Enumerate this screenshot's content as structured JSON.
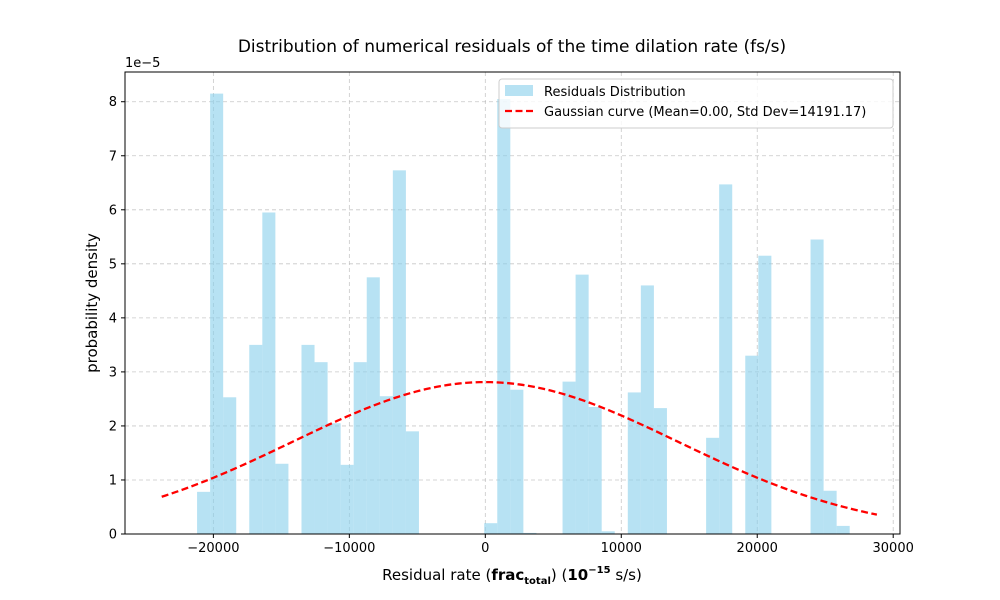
{
  "chart_data": {
    "type": "bar",
    "title": "Distribution of numerical residuals of the time dilation rate (fs/s)",
    "xlabel": {
      "prefix": "Residual rate (",
      "frac_base": "frac",
      "frac_sub": "total",
      "middle": ") (",
      "pow_base": "10",
      "pow_exp": "−15",
      "suffix": " s/s)"
    },
    "ylabel": "probability density",
    "y_offset_label": "1e−5",
    "y_scale": 1e-05,
    "xlim": [
      -26500,
      30500
    ],
    "ylim": [
      0,
      8.55
    ],
    "x_ticks": [
      -20000,
      -10000,
      0,
      10000,
      20000,
      30000
    ],
    "x_tick_labels": [
      "−20000",
      "−10000",
      "0",
      "10000",
      "20000",
      "30000"
    ],
    "y_ticks": [
      0,
      1,
      2,
      3,
      4,
      5,
      6,
      7,
      8
    ],
    "y_tick_labels": [
      "0",
      "1",
      "2",
      "3",
      "4",
      "5",
      "6",
      "7",
      "8"
    ],
    "grid": true,
    "legend_position": "top-right",
    "bar_color": "#87ceeb",
    "bar_opacity": 0.6,
    "curve_color": "#ff0000",
    "bin_edges": [
      -21200,
      -20240,
      -19280,
      -18320,
      -17360,
      -16400,
      -15440,
      -14480,
      -13520,
      -12560,
      -11600,
      -10640,
      -9680,
      -8720,
      -7760,
      -6800,
      -5840,
      -4880,
      -3920,
      -2960,
      -2000,
      -1040,
      -80,
      880,
      1840,
      2800,
      3760,
      4720,
      5680,
      6640,
      7600,
      8560,
      9520,
      10480,
      11440,
      12400,
      13360,
      14320,
      15280,
      16240,
      17200,
      18160,
      19120,
      20080,
      21040,
      22000,
      22960,
      23920,
      24880,
      25840,
      26800
    ],
    "bar_values": [
      0.78,
      8.15,
      2.53,
      0,
      3.5,
      5.95,
      1.3,
      0,
      3.5,
      3.18,
      2.05,
      1.28,
      3.18,
      4.75,
      2.55,
      6.73,
      1.9,
      0,
      0,
      0,
      0,
      0,
      0.2,
      8.05,
      2.67,
      0.02,
      0,
      0,
      2.82,
      4.8,
      2.35,
      0.05,
      0,
      2.62,
      4.6,
      2.33,
      0,
      0,
      0,
      1.78,
      6.47,
      0,
      3.3,
      5.15,
      0,
      0,
      0,
      5.45,
      0.8,
      0.15
    ],
    "series": [
      {
        "name": "Residuals Distribution",
        "kind": "histogram"
      },
      {
        "name": "Gaussian curve (Mean=0.00, Std Dev=14191.17)",
        "kind": "line",
        "mean": 0,
        "std": 14191.17,
        "x_range": [
          -23800,
          28800
        ]
      }
    ]
  }
}
